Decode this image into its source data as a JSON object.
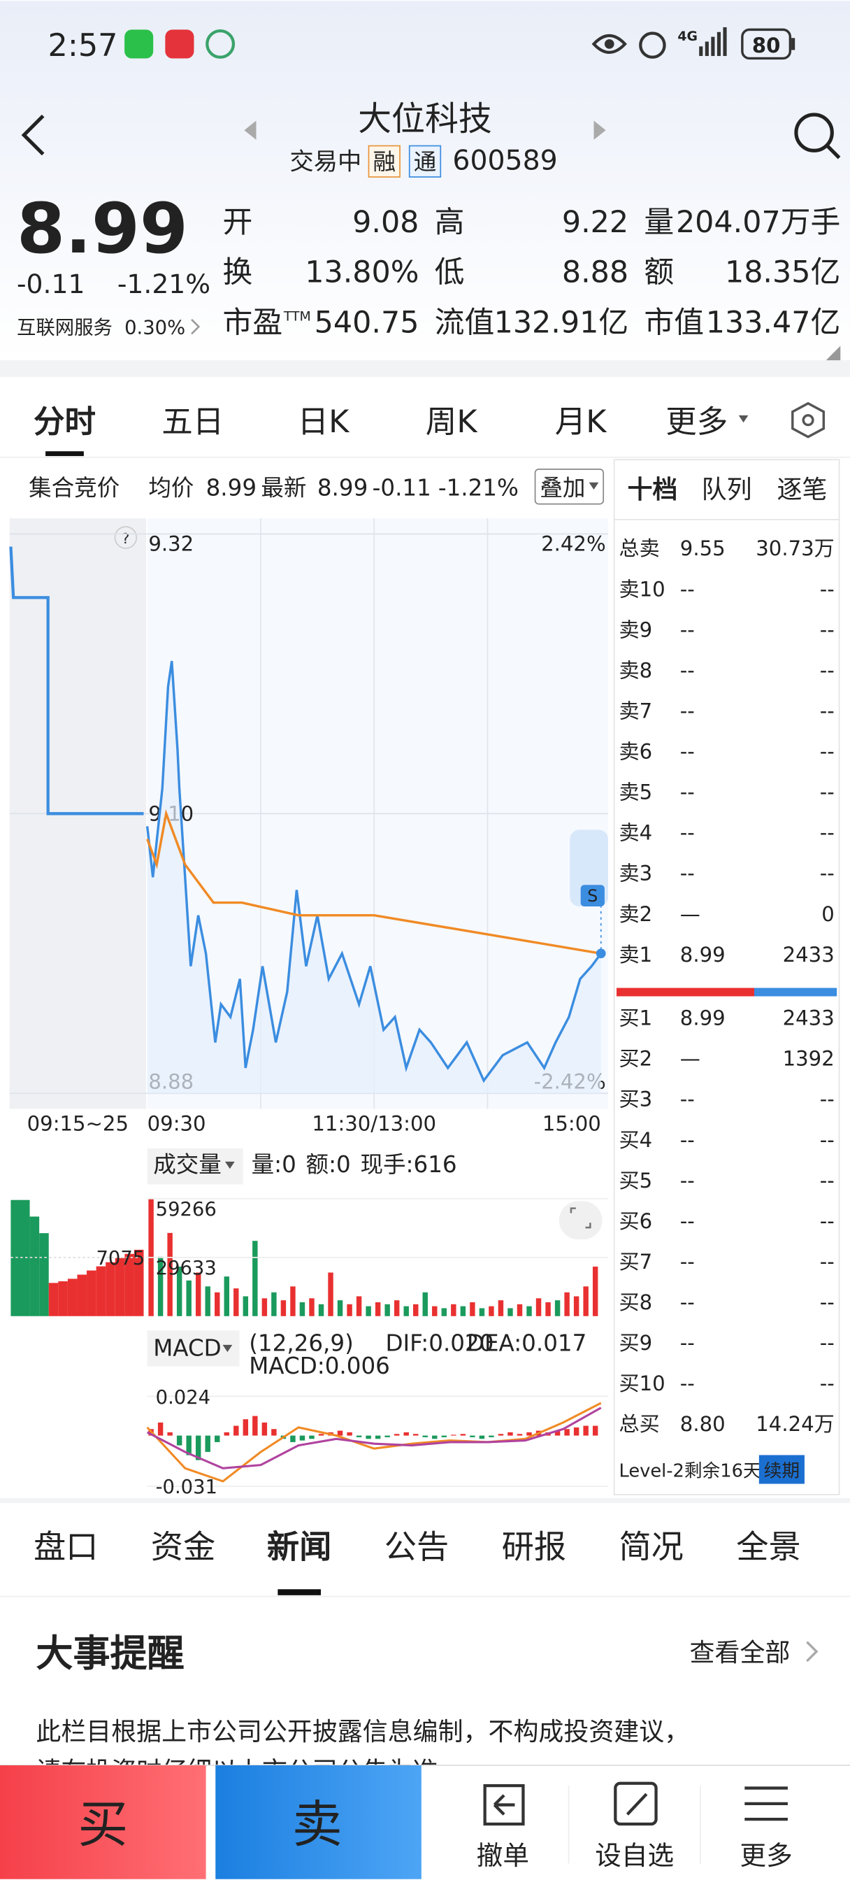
{
  "status_bar": {
    "time": "2:57",
    "network": "4G",
    "battery": "80"
  },
  "header": {
    "title": "大位科技",
    "status": "交易中",
    "badges": [
      "融",
      "通"
    ],
    "code": "600589"
  },
  "quote": {
    "price": "8.99",
    "change": "-0.11",
    "change_pct": "-1.21%",
    "sector": "互联网服务",
    "sector_pct": "0.30%"
  },
  "stats": [
    {
      "label": "开",
      "value": "9.08",
      "color": "#1a9a5c"
    },
    {
      "label": "高",
      "value": "9.22",
      "color": "#e93030"
    },
    {
      "label": "量",
      "value": "204.07万手",
      "color": "#222222"
    },
    {
      "label": "换",
      "value": "13.80%",
      "color": "#222222"
    },
    {
      "label": "低",
      "value": "8.88",
      "color": "#1a9a5c"
    },
    {
      "label": "额",
      "value": "18.35亿",
      "color": "#222222"
    },
    {
      "label": "市盈",
      "sup": "TTM",
      "value": "540.75",
      "color": "#222222"
    },
    {
      "label": "流值",
      "value": "132.91亿",
      "color": "#222222"
    },
    {
      "label": "市值",
      "value": "133.47亿",
      "color": "#222222"
    }
  ],
  "chart_tabs": {
    "items": [
      "分时",
      "五日",
      "日K",
      "周K",
      "月K",
      "更多"
    ],
    "active": 0
  },
  "info_bar": {
    "auction": "集合竞价",
    "avg_label": "均价",
    "avg": "8.99",
    "last_label": "最新",
    "last": "8.99",
    "change": "-0.11",
    "change_pct": "-1.21%",
    "overlay": "叠加"
  },
  "chart_data": [
    {
      "type": "line",
      "xlim": [
        0,
        240
      ],
      "xticks": [
        {
          "value": 0,
          "label": "09:30"
        },
        {
          "value": 120,
          "label": "11:30/13:00"
        },
        {
          "value": 240,
          "label": "15:00"
        }
      ],
      "xgrid": [
        60,
        120,
        180
      ],
      "ylim": [
        8.88,
        9.32
      ],
      "yticks": [
        8.88,
        {
          "value": 9.1,
          "label": "9.10"
        },
        9.32
      ],
      "y2lim": [
        -2.42,
        2.42
      ],
      "y2ticks": [
        {
          "value": -2.42,
          "label": "-2.42%"
        },
        {
          "value": 2.42,
          "label": "2.42%"
        }
      ],
      "series": [
        {
          "color": "#3b8de0",
          "x": [
            0,
            3,
            8,
            11,
            13,
            16,
            17,
            20,
            23,
            27,
            31,
            36,
            39,
            44,
            49,
            52,
            56,
            61,
            68,
            74,
            79,
            84,
            90,
            96,
            103,
            112,
            118,
            125,
            131,
            137,
            144,
            150,
            159,
            169,
            178,
            188,
            201,
            210,
            216,
            223,
            229,
            235,
            240
          ],
          "values": [
            9.09,
            9.05,
            9.12,
            9.2,
            9.22,
            9.15,
            9.12,
            9.05,
            8.98,
            9.02,
            8.99,
            8.92,
            8.95,
            8.94,
            8.97,
            8.9,
            8.93,
            8.98,
            8.92,
            8.96,
            9.04,
            8.98,
            9.02,
            8.97,
            8.99,
            8.95,
            8.98,
            8.93,
            8.94,
            8.9,
            8.93,
            8.92,
            8.9,
            8.92,
            8.89,
            8.91,
            8.92,
            8.9,
            8.92,
            8.94,
            8.97,
            8.98,
            8.99
          ]
        },
        {
          "color": "#f08a24",
          "x": [
            0,
            5,
            10,
            20,
            35,
            50,
            80,
            120,
            160,
            200,
            240
          ],
          "values": [
            9.08,
            9.06,
            9.1,
            9.06,
            9.03,
            9.03,
            9.02,
            9.02,
            9.01,
            9.0,
            8.99
          ]
        }
      ],
      "auction": {
        "label": "09:15~25",
        "xlim": [
          0,
          10
        ],
        "x": [
          0,
          0.2,
          2.8,
          2.8,
          10
        ],
        "values": [
          9.31,
          9.27,
          9.27,
          9.1,
          9.1
        ],
        "color": "#3b8de0"
      }
    },
    {
      "type": "bar",
      "label": "成交量",
      "readout": [
        {
          "text": "量:",
          "value": "0",
          "color": "#f08a24"
        },
        {
          "text": "额:",
          "value": "0",
          "color": "#3b8de0"
        },
        {
          "text": "现手:",
          "value": "616",
          "color": "#f08a24"
        }
      ],
      "xlim": [
        0,
        240
      ],
      "ylim": [
        0,
        59266
      ],
      "yticks": [
        29633,
        59266
      ],
      "x": [
        0,
        5,
        10,
        15,
        20,
        25,
        30,
        35,
        40,
        45,
        50,
        55,
        60,
        65,
        70,
        75,
        80,
        85,
        90,
        95,
        100,
        105,
        110,
        115,
        120,
        125,
        130,
        135,
        140,
        145,
        150,
        155,
        160,
        165,
        170,
        175,
        180,
        185,
        190,
        195,
        200,
        205,
        210,
        215,
        220,
        225,
        230,
        235
      ],
      "values": [
        59266,
        30000,
        42000,
        25000,
        18000,
        22000,
        15000,
        12000,
        20000,
        14000,
        10000,
        38000,
        9000,
        12000,
        8000,
        15000,
        7000,
        9000,
        6000,
        22000,
        8000,
        6000,
        10000,
        5000,
        7000,
        6000,
        8000,
        5000,
        6000,
        12000,
        5000,
        4000,
        6000,
        5000,
        7000,
        4000,
        5000,
        8000,
        4000,
        6000,
        5000,
        9000,
        7000,
        8000,
        12000,
        10000,
        15000,
        25000
      ],
      "colors": [
        "#e93030",
        "#1a9a5c",
        "#e93030",
        "#1a9a5c",
        "#1a9a5c",
        "#e93030",
        "#1a9a5c",
        "#e93030",
        "#1a9a5c",
        "#e93030",
        "#1a9a5c",
        "#1a9a5c",
        "#e93030",
        "#1a9a5c",
        "#e93030",
        "#e93030",
        "#1a9a5c",
        "#e93030",
        "#1a9a5c",
        "#e93030",
        "#1a9a5c",
        "#e93030",
        "#e93030",
        "#1a9a5c",
        "#e93030",
        "#1a9a5c",
        "#e93030",
        "#1a9a5c",
        "#e93030",
        "#1a9a5c",
        "#e93030",
        "#1a9a5c",
        "#e93030",
        "#1a9a5c",
        "#e93030",
        "#1a9a5c",
        "#e93030",
        "#e93030",
        "#1a9a5c",
        "#e93030",
        "#1a9a5c",
        "#e93030",
        "#e93030",
        "#1a9a5c",
        "#e93030",
        "#e93030",
        "#e93030",
        "#e93030"
      ],
      "auction": {
        "ylim": [
          0,
          14150
        ],
        "yticks": [
          7075
        ],
        "values": [
          14000,
          14000,
          12000,
          10000,
          4000,
          4200,
          4500,
          5000,
          5500,
          6000,
          6500,
          7000,
          7500,
          8000
        ],
        "colors": [
          "#1a9a5c",
          "#1a9a5c",
          "#1a9a5c",
          "#1a9a5c",
          "#e93030",
          "#e93030",
          "#e93030",
          "#e93030",
          "#e93030",
          "#e93030",
          "#e93030",
          "#e93030",
          "#e93030",
          "#e93030"
        ]
      }
    },
    {
      "type": "macd",
      "label": "MACD",
      "params": "(12,26,9)",
      "legend": [
        {
          "text": "DIF:0.020",
          "color": "#f08a24"
        },
        {
          "text": "DEA:0.017",
          "color": "#b0439e"
        },
        {
          "text": "MACD:0.006",
          "color": "#e93030"
        }
      ],
      "xlim": [
        0,
        240
      ],
      "ylim": [
        -0.031,
        0.024
      ],
      "yticks": [
        -0.031,
        0.024
      ],
      "histogram": {
        "up_color": "#e93030",
        "down_color": "#1a9a5c",
        "x": [
          0,
          5,
          10,
          15,
          20,
          25,
          30,
          35,
          40,
          45,
          50,
          55,
          60,
          65,
          70,
          75,
          80,
          85,
          90,
          95,
          100,
          105,
          110,
          115,
          120,
          125,
          130,
          135,
          140,
          145,
          150,
          155,
          160,
          165,
          170,
          175,
          180,
          185,
          190,
          195,
          200,
          205,
          210,
          215,
          220,
          225,
          230,
          235
        ],
        "values": [
          0.004,
          0.008,
          0.002,
          -0.006,
          -0.012,
          -0.015,
          -0.01,
          -0.004,
          0.002,
          0.006,
          0.01,
          0.012,
          0.008,
          0.004,
          -0.002,
          -0.004,
          -0.003,
          -0.002,
          0.001,
          0.002,
          0.003,
          0.002,
          -0.001,
          -0.002,
          -0.002,
          -0.001,
          0.001,
          0.002,
          0.001,
          -0.001,
          -0.002,
          -0.001,
          0.0005,
          0.001,
          -0.001,
          -0.002,
          -0.001,
          0.001,
          0.002,
          0.001,
          0.002,
          0.003,
          0.002,
          0.003,
          0.004,
          0.005,
          0.006,
          0.006
        ]
      },
      "series": [
        {
          "color": "#f08a24",
          "x": [
            0,
            20,
            40,
            60,
            80,
            100,
            120,
            140,
            160,
            180,
            200,
            220,
            240
          ],
          "values": [
            0.005,
            -0.02,
            -0.028,
            -0.01,
            0.005,
            0.0,
            -0.008,
            -0.005,
            -0.003,
            -0.004,
            -0.002,
            0.008,
            0.02
          ]
        },
        {
          "color": "#b0439e",
          "x": [
            0,
            20,
            40,
            60,
            80,
            100,
            120,
            140,
            160,
            180,
            200,
            220,
            240
          ],
          "values": [
            0.002,
            -0.01,
            -0.02,
            -0.018,
            -0.006,
            -0.002,
            -0.005,
            -0.006,
            -0.004,
            -0.004,
            -0.003,
            0.004,
            0.017
          ]
        }
      ]
    }
  ],
  "order_book": {
    "tabs": [
      "十档",
      "队列",
      "逐笔"
    ],
    "sell_rows": [
      {
        "label": "总卖",
        "price": "9.55",
        "volume": "30.73万",
        "color": "#e93030"
      },
      {
        "label": "卖10",
        "price": "--",
        "volume": "--",
        "color": "#222222"
      },
      {
        "label": "卖9",
        "price": "--",
        "volume": "--",
        "color": "#222222"
      },
      {
        "label": "卖8",
        "price": "--",
        "volume": "--",
        "color": "#222222"
      },
      {
        "label": "卖7",
        "price": "--",
        "volume": "--",
        "color": "#222222"
      },
      {
        "label": "卖6",
        "price": "--",
        "volume": "--",
        "color": "#222222"
      },
      {
        "label": "卖5",
        "price": "--",
        "volume": "--",
        "color": "#222222"
      },
      {
        "label": "卖4",
        "price": "--",
        "volume": "--",
        "color": "#222222"
      },
      {
        "label": "卖3",
        "price": "--",
        "volume": "--",
        "color": "#222222"
      },
      {
        "label": "卖2",
        "price": "—",
        "volume": "0",
        "color": "#222222"
      },
      {
        "label": "卖1",
        "price": "8.99",
        "volume": "2433",
        "color": "#1a9a5c"
      }
    ],
    "buy_rows": [
      {
        "label": "买1",
        "price": "8.99",
        "volume": "2433",
        "color": "#1a9a5c"
      },
      {
        "label": "买2",
        "price": "—",
        "volume": "1392",
        "color": "#222222"
      },
      {
        "label": "买3",
        "price": "--",
        "volume": "--",
        "color": "#222222"
      },
      {
        "label": "买4",
        "price": "--",
        "volume": "--",
        "color": "#222222"
      },
      {
        "label": "买5",
        "price": "--",
        "volume": "--",
        "color": "#222222"
      },
      {
        "label": "买6",
        "price": "--",
        "volume": "--",
        "color": "#222222"
      },
      {
        "label": "买7",
        "price": "--",
        "volume": "--",
        "color": "#222222"
      },
      {
        "label": "买8",
        "price": "--",
        "volume": "--",
        "color": "#222222"
      },
      {
        "label": "买9",
        "price": "--",
        "volume": "--",
        "color": "#222222"
      },
      {
        "label": "买10",
        "price": "--",
        "volume": "--",
        "color": "#222222"
      },
      {
        "label": "总买",
        "price": "8.80",
        "volume": "14.24万",
        "color": "#1a9a5c"
      }
    ],
    "level2": "Level-2剩余16天",
    "renew": "续期"
  },
  "section_tabs": {
    "items": [
      "盘口",
      "资金",
      "新闻",
      "公告",
      "研报",
      "简况",
      "全景"
    ],
    "active": 2
  },
  "events": {
    "title": "大事提醒",
    "more": "查看全部",
    "lines": [
      "此栏目根据上市公司公开披露信息编制，不构成投资建议，",
      "请在投资时仔细以上市公司公告为准"
    ]
  },
  "bottom_bar": {
    "buy": "买",
    "sell": "卖",
    "actions": [
      "撤单",
      "设自选",
      "更多"
    ]
  }
}
